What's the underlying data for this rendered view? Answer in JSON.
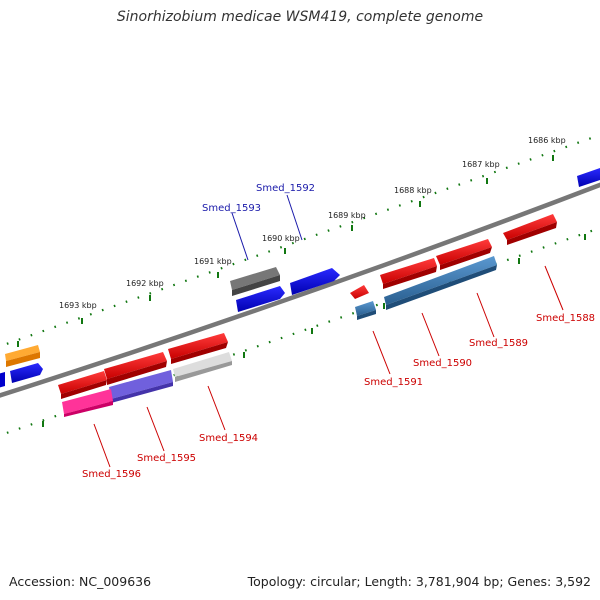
{
  "title": "Sinorhizobium medicae WSM419, complete genome",
  "footer": {
    "accession": "Accession: NC_009636",
    "topology": "Topology: circular; Length: 3,781,904 bp; Genes: 3,592"
  },
  "kbp_labels": [
    "1686 kbp",
    "1687 kbp",
    "1688 kbp",
    "1689 kbp",
    "1690 kbp",
    "1691 kbp",
    "1692 kbp",
    "1693 kbp"
  ],
  "gene_labels": {
    "smed_1588": "Smed_1588",
    "smed_1589": "Smed_1589",
    "smed_1590": "Smed_1590",
    "smed_1591": "Smed_1591",
    "smed_1592": "Smed_1592",
    "smed_1593": "Smed_1593",
    "smed_1594": "Smed_1594",
    "smed_1595": "Smed_1595",
    "smed_1596": "Smed_1596"
  },
  "colors": {
    "red": "#e00000",
    "blue": "#0000dd",
    "steelblue": "#3a78b0",
    "gray": "#555555",
    "lightgray": "#bbbbbb",
    "orange": "#ee8800",
    "magenta": "#ee1177",
    "purple": "#6655cc",
    "tick_green": "#117711",
    "backbone": "#777777"
  }
}
